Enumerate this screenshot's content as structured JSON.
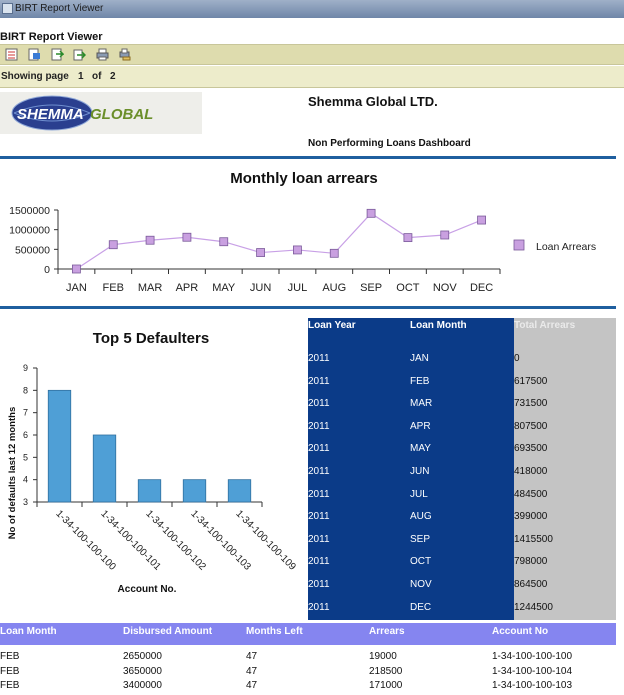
{
  "window": {
    "title": "BIRT Report Viewer"
  },
  "app": {
    "title": "BIRT Report Viewer"
  },
  "toolbar": {
    "buttons": [
      "toc-icon",
      "export-icon",
      "export-data-icon",
      "export-report-icon",
      "print-icon",
      "print-server-icon"
    ]
  },
  "nav": {
    "showing": "Showing page",
    "page": "1",
    "of": "of",
    "total": "2"
  },
  "header": {
    "logo_text_1": "SHEMMA",
    "logo_text_2": "GLOBAL",
    "company": "Shemma Global LTD.",
    "subtitle": "Non Performing Loans Dashboard"
  },
  "colors": {
    "line": "#c8a0e6",
    "marker": "#c9a0e0",
    "bar": "#4f9fd6",
    "table_blue": "#0b3b88",
    "table_gray": "#c4c4c4",
    "header_purple": "#8585f0",
    "rule": "#1f5f9f"
  },
  "chart_data": [
    {
      "type": "line",
      "title": "Monthly loan arrears",
      "categories": [
        "JAN",
        "FEB",
        "MAR",
        "APR",
        "MAY",
        "JUN",
        "JUL",
        "AUG",
        "SEP",
        "OCT",
        "NOV",
        "DEC"
      ],
      "series": [
        {
          "name": "Loan Arrears",
          "values": [
            0,
            617500,
            731500,
            807500,
            693500,
            418000,
            484500,
            399000,
            1415500,
            798000,
            864500,
            1244500
          ]
        }
      ],
      "yticks": [
        "1500000",
        "1000000",
        "500000",
        "0"
      ],
      "ylim": [
        0,
        1500000
      ],
      "legend": "right"
    },
    {
      "type": "bar",
      "title": "Top 5 Defaulters",
      "categories": [
        "1-34-100-100-100",
        "1-34-100-100-101",
        "1-34-100-100-102",
        "1-34-100-100-103",
        "1-34-100-100-109"
      ],
      "values": [
        8,
        6,
        4,
        4,
        4
      ],
      "xlabel": "Account No.",
      "ylabel": "No of defaults last 12 months",
      "yticks": [
        "9",
        "8",
        "7",
        "6",
        "5",
        "4",
        "3"
      ],
      "ylim": [
        3,
        9
      ]
    }
  ],
  "arrears_table": {
    "headers": [
      "Loan Year",
      "Loan Month",
      "Total Arrears"
    ],
    "rows": [
      [
        "2011",
        "JAN",
        "0"
      ],
      [
        "2011",
        "FEB",
        "617500"
      ],
      [
        "2011",
        "MAR",
        "731500"
      ],
      [
        "2011",
        "APR",
        "807500"
      ],
      [
        "2011",
        "MAY",
        "693500"
      ],
      [
        "2011",
        "JUN",
        "418000"
      ],
      [
        "2011",
        "JUL",
        "484500"
      ],
      [
        "2011",
        "AUG",
        "399000"
      ],
      [
        "2011",
        "SEP",
        "1415500"
      ],
      [
        "2011",
        "OCT",
        "798000"
      ],
      [
        "2011",
        "NOV",
        "864500"
      ],
      [
        "2011",
        "DEC",
        "1244500"
      ]
    ]
  },
  "loan_table": {
    "headers": [
      "Loan Month",
      "Disbursed Amount",
      "Months Left",
      "Arrears",
      "Account No"
    ],
    "rows": [
      [
        "FEB",
        "2650000",
        "47",
        "19000",
        "1-34-100-100-100"
      ],
      [
        "FEB",
        "3650000",
        "47",
        "218500",
        "1-34-100-100-104"
      ],
      [
        "FEB",
        "3400000",
        "47",
        "171000",
        "1-34-100-100-103"
      ]
    ]
  }
}
